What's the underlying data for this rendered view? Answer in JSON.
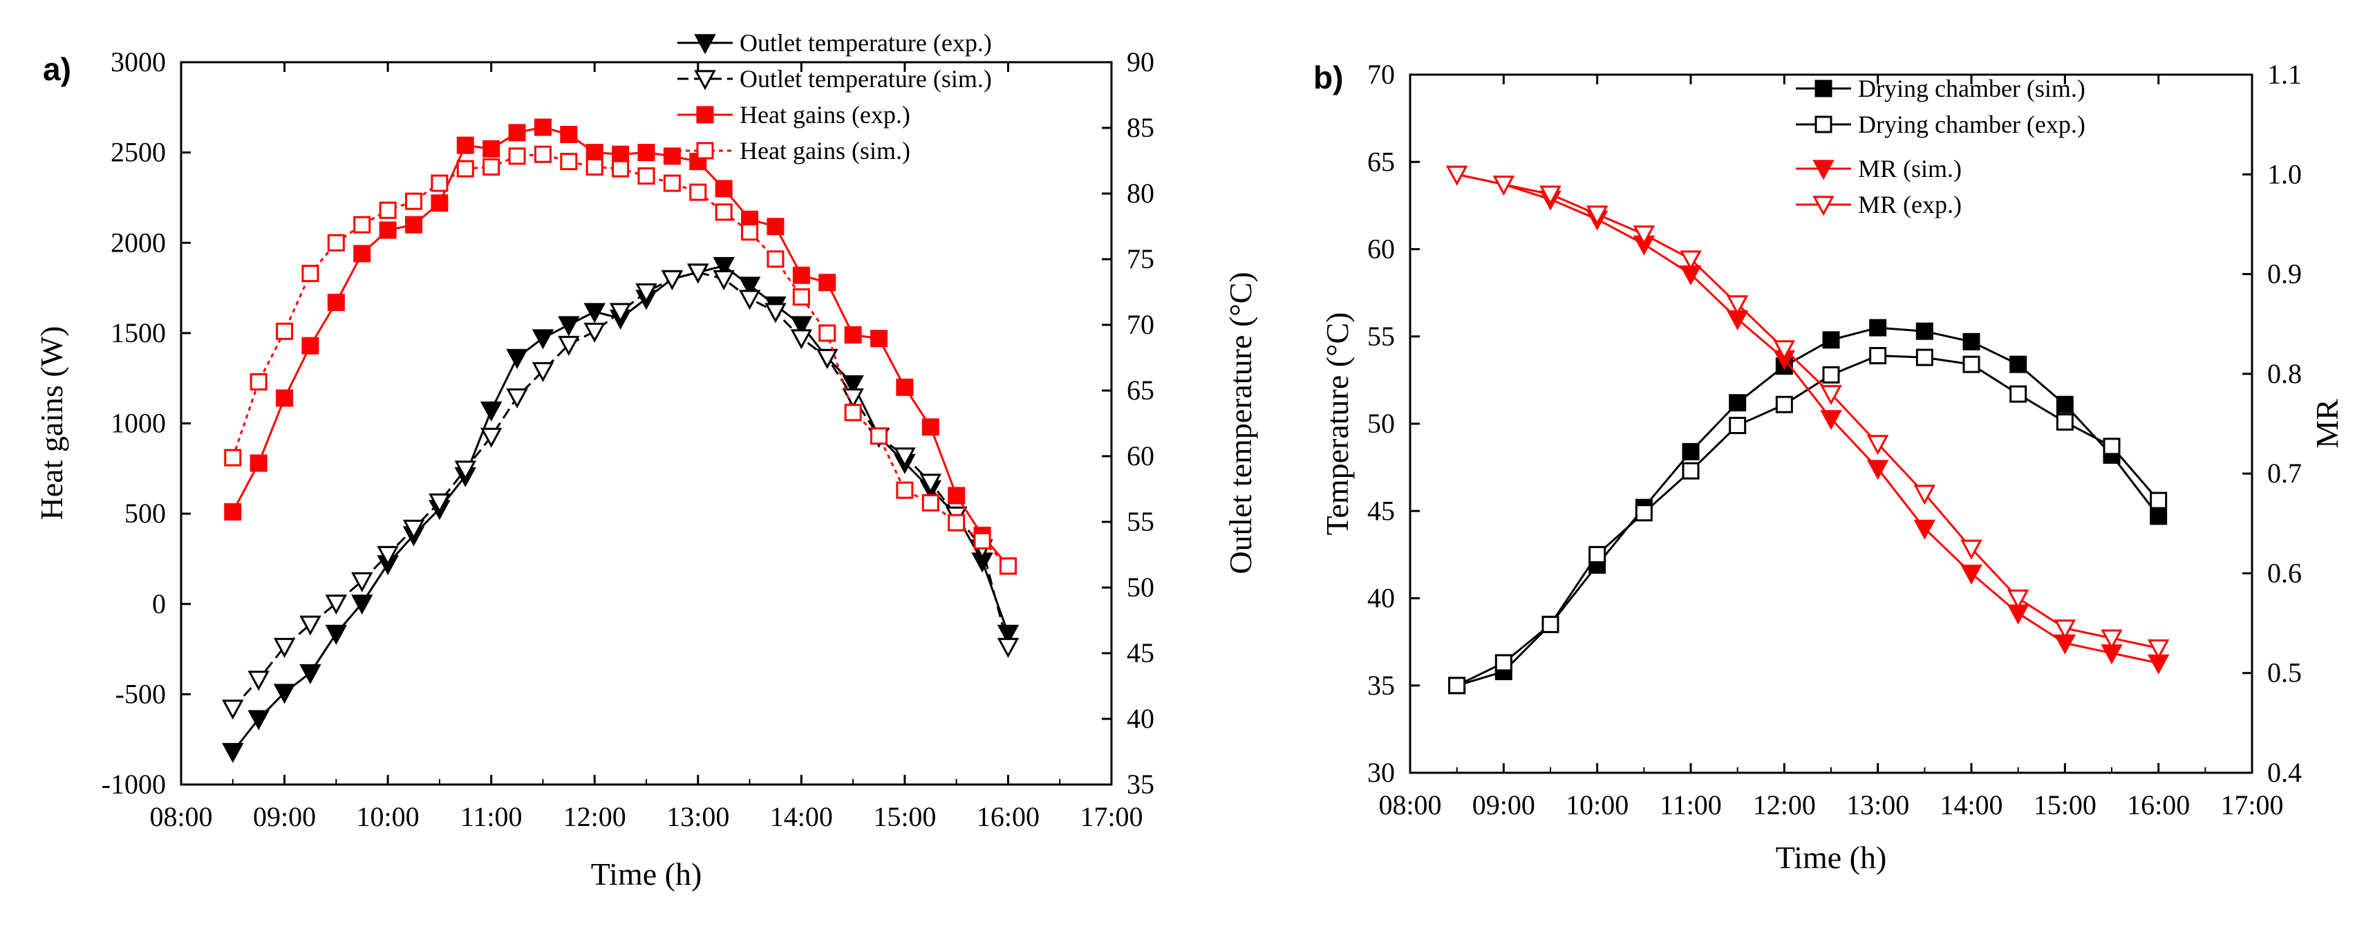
{
  "colors": {
    "black": "#000000",
    "red": "#ff0000"
  },
  "chart_data": [
    {
      "panel": "a)",
      "type": "line",
      "xlabel": "Time (h)",
      "ylabel_left": "Heat gains (W)",
      "ylabel_right": "Outlet temperature (°C)",
      "xlim": [
        8,
        17
      ],
      "xtick_values": [
        8,
        9,
        10,
        11,
        12,
        13,
        14,
        15,
        16,
        17
      ],
      "xtick_labels": [
        "08:00",
        "09:00",
        "10:00",
        "11:00",
        "12:00",
        "13:00",
        "14:00",
        "15:00",
        "16:00",
        "17:00"
      ],
      "ylim_left": [
        -1000,
        3000
      ],
      "yticks_left": [
        "-1000",
        "-500",
        "0",
        "500",
        "1000",
        "1500",
        "2000",
        "2500",
        "3000"
      ],
      "ylim_right": [
        35,
        90
      ],
      "yticks_right": [
        "35",
        "40",
        "45",
        "50",
        "55",
        "60",
        "65",
        "70",
        "75",
        "80",
        "85",
        "90"
      ],
      "legend_position": "top-right",
      "series": [
        {
          "name": "Outlet temperature (exp.)",
          "axis": "right",
          "marker": "triangle-down-filled",
          "color": "#000000",
          "line": "solid",
          "x": [
            8.5,
            8.75,
            9.0,
            9.25,
            9.5,
            9.75,
            10.0,
            10.25,
            10.5,
            10.75,
            11.0,
            11.25,
            11.5,
            11.75,
            12.0,
            12.25,
            12.5,
            12.75,
            13.0,
            13.25,
            13.5,
            13.75,
            14.0,
            14.25,
            14.5,
            14.75,
            15.0,
            15.25,
            15.5,
            15.75,
            16.0
          ],
          "y": [
            37.5,
            40.0,
            42.0,
            43.5,
            46.5,
            48.8,
            51.8,
            54.0,
            56.0,
            58.5,
            63.5,
            67.5,
            69.0,
            70.0,
            71.0,
            70.5,
            72.0,
            73.5,
            74.0,
            74.5,
            73.0,
            71.5,
            70.0,
            67.5,
            65.5,
            61.5,
            59.5,
            57.5,
            55.5,
            52.0,
            46.5
          ]
        },
        {
          "name": "Outlet temperature (sim.)",
          "axis": "right",
          "marker": "triangle-down-open",
          "color": "#000000",
          "line": "dashed",
          "x": [
            8.5,
            8.75,
            9.0,
            9.25,
            9.5,
            9.75,
            10.0,
            10.25,
            10.5,
            10.75,
            11.0,
            11.25,
            11.5,
            11.75,
            12.0,
            12.25,
            12.5,
            12.75,
            13.0,
            13.25,
            13.5,
            13.75,
            14.0,
            14.25,
            14.5,
            14.75,
            15.0,
            15.25,
            15.5,
            15.75,
            16.0
          ],
          "y": [
            40.8,
            43.0,
            45.5,
            47.2,
            48.8,
            50.5,
            52.5,
            54.5,
            56.5,
            59.0,
            61.5,
            64.5,
            66.5,
            68.5,
            69.5,
            71.0,
            72.5,
            73.5,
            74.0,
            73.5,
            72.0,
            71.0,
            69.0,
            67.5,
            64.5,
            61.5,
            60.0,
            58.0,
            55.5,
            53.0,
            45.5
          ]
        },
        {
          "name": "Heat gains (exp.)",
          "axis": "left",
          "marker": "square-filled",
          "color": "#ff0000",
          "line": "solid",
          "x": [
            8.5,
            8.75,
            9.0,
            9.25,
            9.5,
            9.75,
            10.0,
            10.25,
            10.5,
            10.75,
            11.0,
            11.25,
            11.5,
            11.75,
            12.0,
            12.25,
            12.5,
            12.75,
            13.0,
            13.25,
            13.5,
            13.75,
            14.0,
            14.25,
            14.5,
            14.75,
            15.0,
            15.25,
            15.5,
            15.75,
            16.0
          ],
          "y": [
            510,
            780,
            1140,
            1430,
            1670,
            1940,
            2070,
            2100,
            2220,
            2540,
            2520,
            2610,
            2640,
            2600,
            2500,
            2490,
            2500,
            2480,
            2450,
            2300,
            2130,
            2090,
            1820,
            1780,
            1490,
            1470,
            1200,
            980,
            600,
            380,
            210
          ]
        },
        {
          "name": "Heat gains (sim.)",
          "axis": "left",
          "marker": "square-open",
          "color": "#ff0000",
          "line": "dotted",
          "x": [
            8.5,
            8.75,
            9.0,
            9.25,
            9.5,
            9.75,
            10.0,
            10.25,
            10.5,
            10.75,
            11.0,
            11.25,
            11.5,
            11.75,
            12.0,
            12.25,
            12.5,
            12.75,
            13.0,
            13.25,
            13.5,
            13.75,
            14.0,
            14.25,
            14.5,
            14.75,
            15.0,
            15.25,
            15.5,
            15.75,
            16.0
          ],
          "y": [
            810,
            1230,
            1510,
            1830,
            2000,
            2100,
            2180,
            2230,
            2330,
            2410,
            2420,
            2480,
            2490,
            2450,
            2420,
            2410,
            2370,
            2330,
            2280,
            2170,
            2060,
            1910,
            1700,
            1500,
            1060,
            930,
            630,
            560,
            450,
            350,
            210
          ]
        }
      ]
    },
    {
      "panel": "b)",
      "type": "line",
      "xlabel": "Time (h)",
      "ylabel_left": "Temperature (°C)",
      "ylabel_right": "MR",
      "xlim": [
        8,
        17
      ],
      "xtick_values": [
        8,
        9,
        10,
        11,
        12,
        13,
        14,
        15,
        16,
        17
      ],
      "xtick_labels": [
        "08:00",
        "09:00",
        "10:00",
        "11:00",
        "12:00",
        "13:00",
        "14:00",
        "15:00",
        "16:00",
        "17:00"
      ],
      "ylim_left": [
        30,
        70
      ],
      "yticks_left": [
        "30",
        "35",
        "40",
        "45",
        "50",
        "55",
        "60",
        "65",
        "70"
      ],
      "ylim_right": [
        0.4,
        1.1
      ],
      "yticks_right": [
        "0.4",
        "0.5",
        "0.6",
        "0.7",
        "0.8",
        "0.9",
        "1.0",
        "1.1"
      ],
      "legend_position": "top-center",
      "series": [
        {
          "name": "Drying chamber (sim.)",
          "axis": "left",
          "marker": "square-filled",
          "color": "#000000",
          "line": "solid",
          "x": [
            8.5,
            9.0,
            9.5,
            10.0,
            10.5,
            11.0,
            11.5,
            12.0,
            12.5,
            13.0,
            13.5,
            14.0,
            14.5,
            15.0,
            15.5,
            16.0
          ],
          "y": [
            35.0,
            35.8,
            38.5,
            41.9,
            45.2,
            48.4,
            51.2,
            53.3,
            54.8,
            55.5,
            55.3,
            54.7,
            53.4,
            51.1,
            48.2,
            44.7
          ]
        },
        {
          "name": "Drying chamber (exp.)",
          "axis": "left",
          "marker": "square-open",
          "color": "#000000",
          "line": "solid",
          "x": [
            8.5,
            9.0,
            9.5,
            10.0,
            10.5,
            11.0,
            11.5,
            12.0,
            12.5,
            13.0,
            13.5,
            14.0,
            14.5,
            15.0,
            15.5,
            16.0
          ],
          "y": [
            35.0,
            36.3,
            38.5,
            42.5,
            44.9,
            47.3,
            49.9,
            51.1,
            52.8,
            53.9,
            53.8,
            53.4,
            51.7,
            50.1,
            48.7,
            45.6
          ]
        },
        {
          "name": "MR (sim.)",
          "axis": "right",
          "marker": "triangle-down-filled",
          "color": "#ff0000",
          "line": "solid",
          "x": [
            8.5,
            9.0,
            9.5,
            10.0,
            10.5,
            11.0,
            11.5,
            12.0,
            12.5,
            13.0,
            13.5,
            14.0,
            14.5,
            15.0,
            15.5,
            16.0
          ],
          "y": [
            1.0,
            0.99,
            0.975,
            0.955,
            0.93,
            0.9,
            0.855,
            0.815,
            0.755,
            0.705,
            0.645,
            0.6,
            0.56,
            0.53,
            0.52,
            0.51
          ]
        },
        {
          "name": "MR (exp.)",
          "axis": "right",
          "marker": "triangle-down-open",
          "color": "#ff0000",
          "line": "solid",
          "x": [
            8.5,
            9.0,
            9.5,
            10.0,
            10.5,
            11.0,
            11.5,
            12.0,
            12.5,
            13.0,
            13.5,
            14.0,
            14.5,
            15.0,
            15.5,
            16.0
          ],
          "y": [
            1.0,
            0.99,
            0.98,
            0.96,
            0.94,
            0.915,
            0.87,
            0.825,
            0.78,
            0.73,
            0.68,
            0.625,
            0.575,
            0.545,
            0.535,
            0.525
          ]
        }
      ]
    }
  ]
}
